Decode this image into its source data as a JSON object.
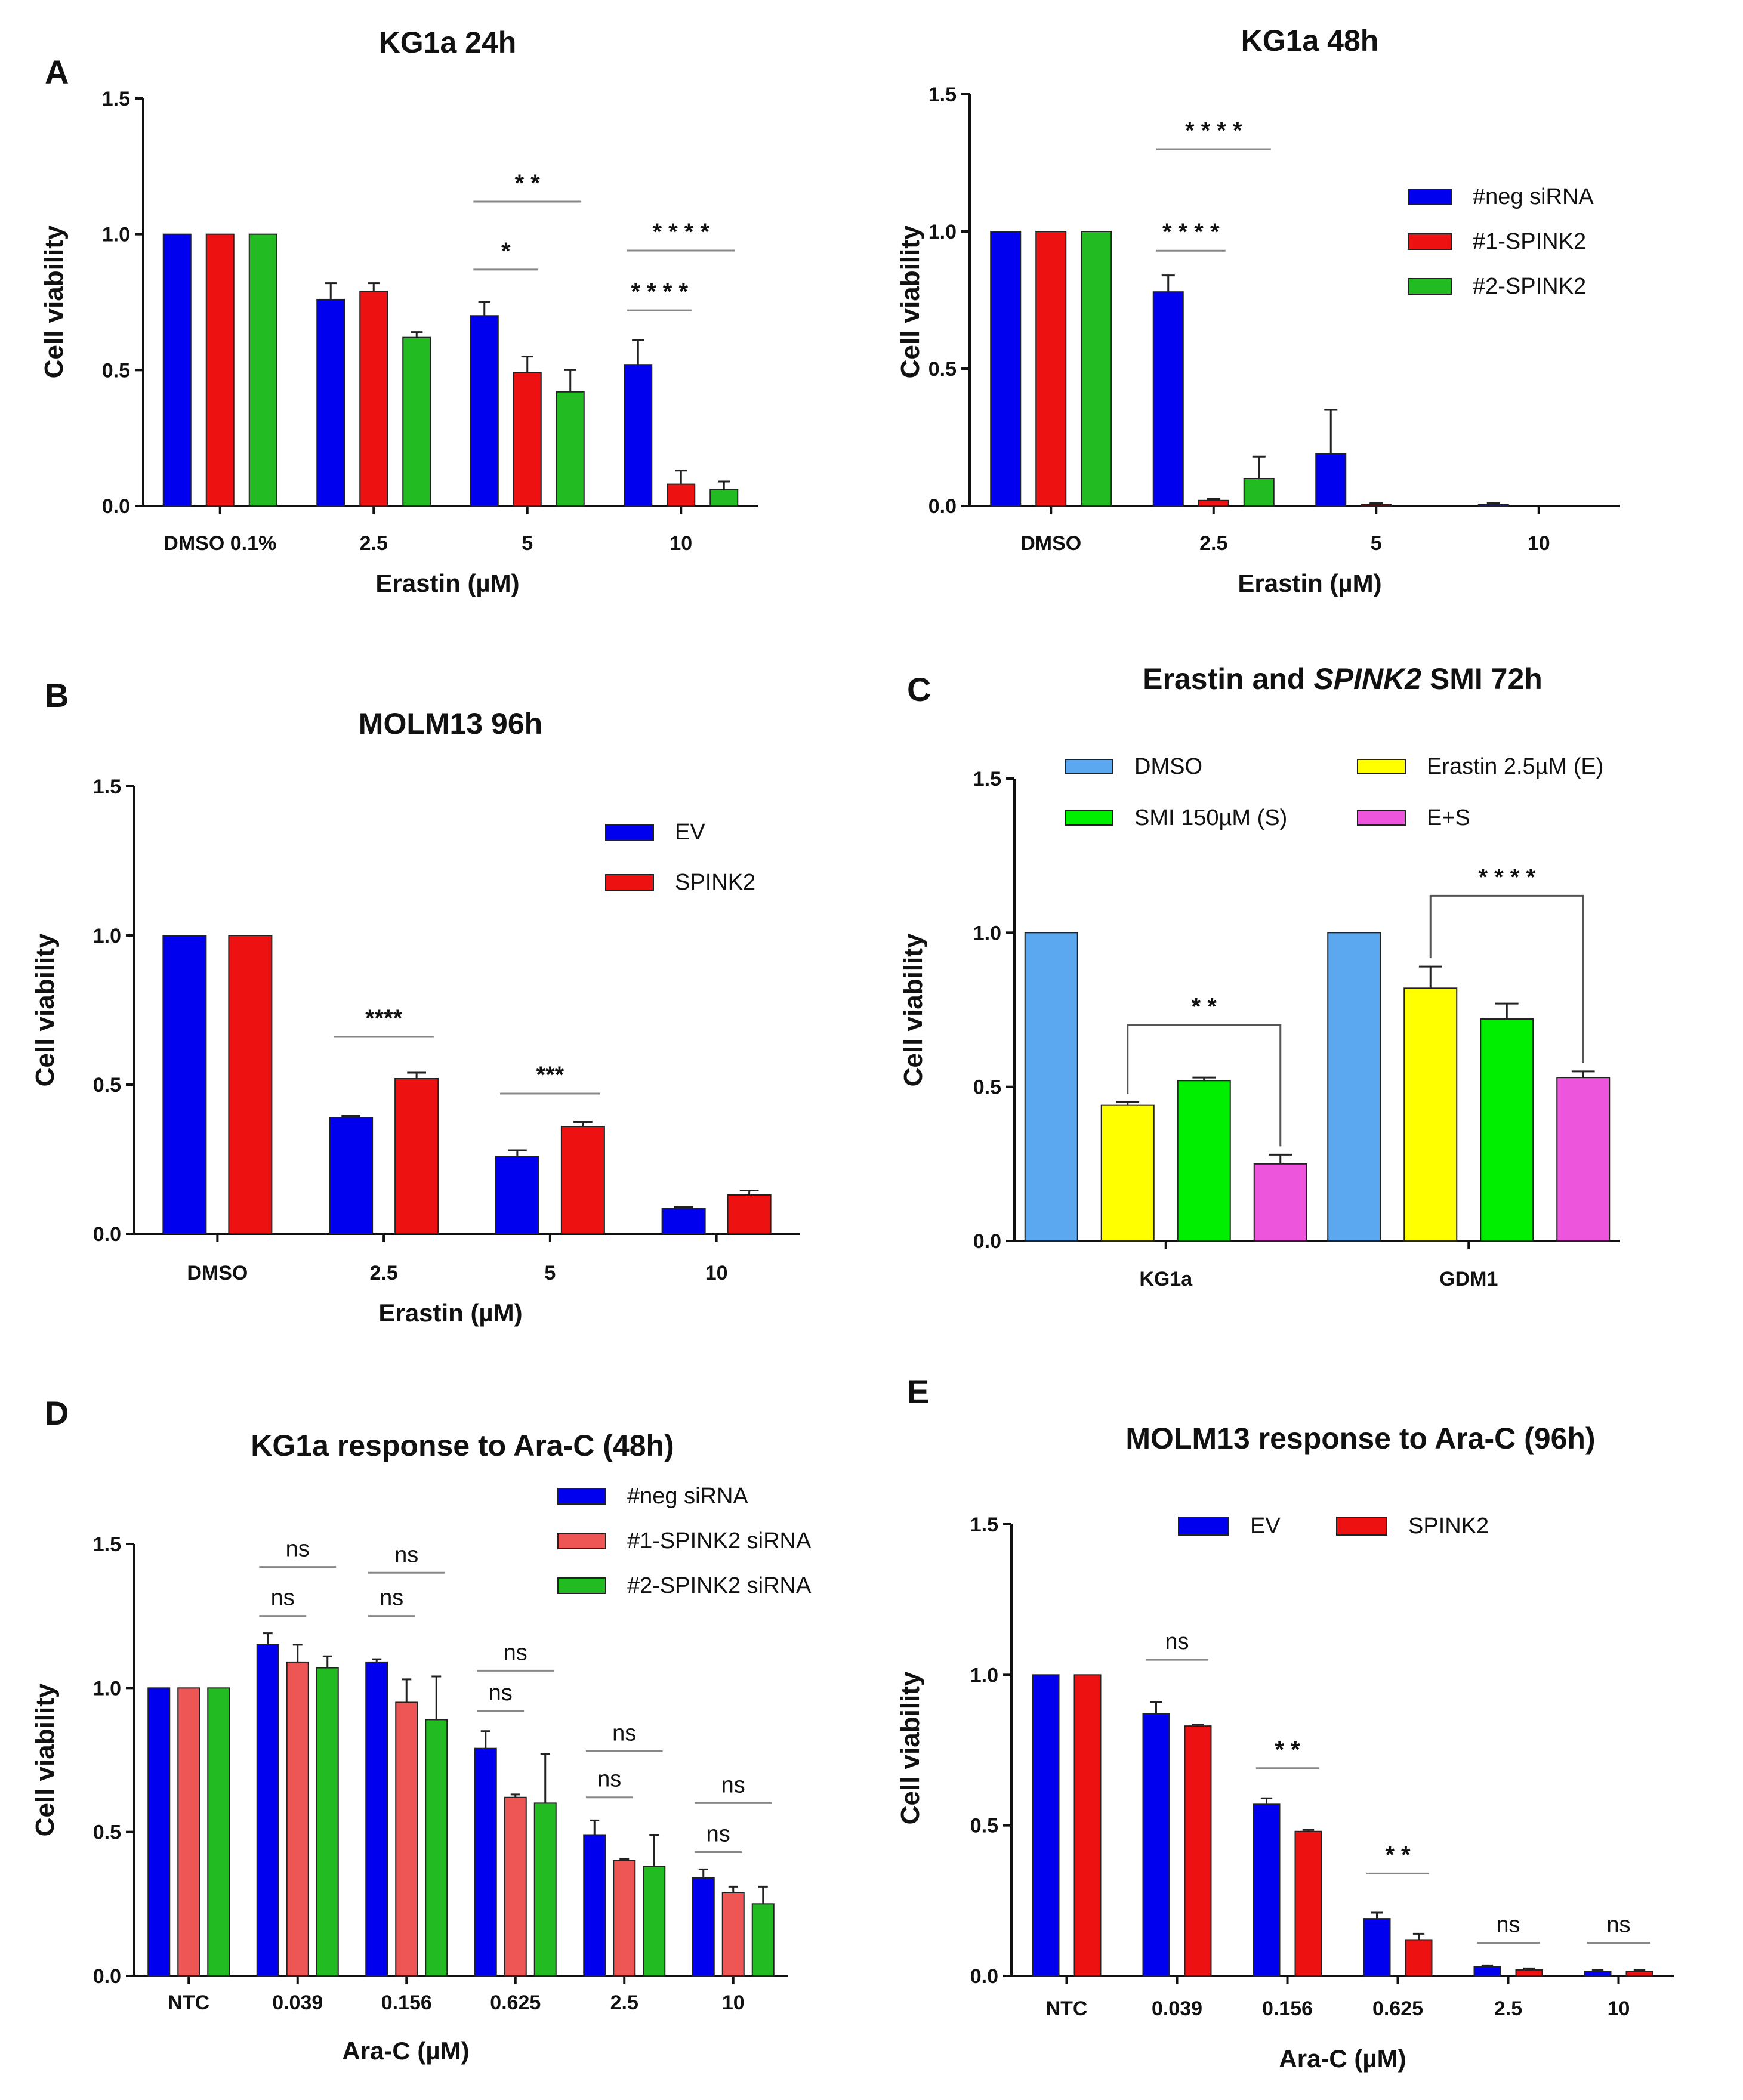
{
  "chart_data": [
    {
      "id": "A1",
      "letter": "A",
      "type": "bar",
      "title": "KG1a 24h",
      "title_italic": "",
      "title_suffix": "",
      "xlabel": "Erastin (µM)",
      "ylabel": "Cell viability",
      "ylim": [
        0,
        1.5
      ],
      "yticks": [
        "0.0",
        "0.5",
        "1.0",
        "1.5"
      ],
      "categories": [
        "DMSO 0.1%",
        "2.5",
        "5",
        "10"
      ],
      "series": [
        {
          "name": "#neg siRNA",
          "color": "#0000ee",
          "values": [
            1.0,
            0.76,
            0.7,
            0.52
          ],
          "errors": [
            0,
            0.06,
            0.05,
            0.09
          ]
        },
        {
          "name": "#1-SPINK2",
          "color": "#ee1111",
          "values": [
            1.0,
            0.79,
            0.49,
            0.08
          ],
          "errors": [
            0,
            0.03,
            0.06,
            0.05
          ]
        },
        {
          "name": "#2-SPINK2",
          "color": "#22bb22",
          "values": [
            1.0,
            0.62,
            0.42,
            0.06
          ],
          "errors": [
            0,
            0.02,
            0.08,
            0.03
          ]
        }
      ],
      "legend": null,
      "annotations": [
        {
          "text": "*",
          "group": 2,
          "from": 0,
          "to": 1,
          "y": 0.87
        },
        {
          "text": "* *",
          "group": 2,
          "from": 0,
          "to": 2,
          "y": 1.12
        },
        {
          "text": "* * * *",
          "group": 3,
          "from": 0,
          "to": 1,
          "y": 0.72
        },
        {
          "text": "* * * *",
          "group": 3,
          "from": 0,
          "to": 2,
          "y": 0.94
        }
      ]
    },
    {
      "id": "A2",
      "letter": "",
      "type": "bar",
      "title": "KG1a 48h",
      "title_italic": "",
      "title_suffix": "",
      "xlabel": "Erastin (µM)",
      "ylabel": "Cell viability",
      "ylim": [
        0,
        1.5
      ],
      "yticks": [
        "0.0",
        "0.5",
        "1.0",
        "1.5"
      ],
      "categories": [
        "DMSO",
        "2.5",
        "5",
        "10"
      ],
      "series": [
        {
          "name": "#neg siRNA",
          "color": "#0000ee",
          "values": [
            1.0,
            0.78,
            0.19,
            0.005
          ],
          "errors": [
            0,
            0.06,
            0.16,
            0.005
          ]
        },
        {
          "name": "#1-SPINK2",
          "color": "#ee1111",
          "values": [
            1.0,
            0.02,
            0.005,
            0.0
          ],
          "errors": [
            0,
            0.005,
            0.005,
            0
          ]
        },
        {
          "name": "#2-SPINK2",
          "color": "#22bb22",
          "values": [
            1.0,
            0.1,
            0.0,
            0.0
          ],
          "errors": [
            0,
            0.08,
            0,
            0
          ]
        }
      ],
      "legend": "top-right",
      "annotations": [
        {
          "text": "* * * *",
          "group": 1,
          "from": 0,
          "to": 1,
          "y": 0.93
        },
        {
          "text": "* * * *",
          "group": 1,
          "from": 0,
          "to": 2,
          "y": 1.3
        }
      ]
    },
    {
      "id": "B",
      "letter": "B",
      "type": "bar",
      "title": "MOLM13 96h",
      "title_italic": "",
      "title_suffix": "",
      "xlabel": "Erastin (µM)",
      "ylabel": "Cell viability",
      "ylim": [
        0,
        1.5
      ],
      "yticks": [
        "0.0",
        "0.5",
        "1.0",
        "1.5"
      ],
      "categories": [
        "DMSO",
        "2.5",
        "5",
        "10"
      ],
      "series": [
        {
          "name": "EV",
          "color": "#0000ee",
          "values": [
            1.0,
            0.39,
            0.26,
            0.085
          ],
          "errors": [
            0,
            0.005,
            0.02,
            0.005
          ]
        },
        {
          "name": "SPINK2",
          "color": "#ee1111",
          "values": [
            1.0,
            0.52,
            0.36,
            0.13
          ],
          "errors": [
            0,
            0.02,
            0.015,
            0.015
          ]
        }
      ],
      "legend": "top-right",
      "annotations": [
        {
          "text": "****",
          "group": 1,
          "from": 0,
          "to": 1,
          "y": 0.66
        },
        {
          "text": "***",
          "group": 2,
          "from": 0,
          "to": 1,
          "y": 0.47
        }
      ]
    },
    {
      "id": "C",
      "letter": "C",
      "type": "bar",
      "title": "Erastin and ",
      "title_italic": "SPINK2",
      "title_suffix": " SMI 72h",
      "xlabel": "",
      "ylabel": "Cell viability",
      "ylim": [
        0,
        1.5
      ],
      "yticks": [
        "0.0",
        "0.5",
        "1.0",
        "1.5"
      ],
      "categories": [
        "KG1a",
        "GDM1"
      ],
      "series": [
        {
          "name": "DMSO",
          "color": "#5ba8f0",
          "values": [
            1.0,
            1.0
          ],
          "errors": [
            0,
            0
          ]
        },
        {
          "name": "Erastin 2.5µM (E)",
          "color": "#ffff00",
          "values": [
            0.44,
            0.82
          ],
          "errors": [
            0.01,
            0.07
          ]
        },
        {
          "name": "SMI 150µM (S)",
          "color": "#00ee00",
          "values": [
            0.52,
            0.72
          ],
          "errors": [
            0.01,
            0.05
          ]
        },
        {
          "name": "E+S",
          "color": "#ee55dd",
          "values": [
            0.25,
            0.53
          ],
          "errors": [
            0.03,
            0.02
          ]
        }
      ],
      "legend": "top",
      "annotations": [
        {
          "text": "* *",
          "group": 0,
          "from": 1,
          "to": 3,
          "y": 0.7,
          "bracket": true
        },
        {
          "text": "* * * *",
          "group": 1,
          "from": 1,
          "to": 3,
          "y": 1.12,
          "bracket": true
        }
      ]
    },
    {
      "id": "D",
      "letter": "D",
      "type": "bar",
      "title": "KG1a response to Ara-C (48h)",
      "title_italic": "",
      "title_suffix": "",
      "xlabel": "Ara-C (µM)",
      "ylabel": "Cell viability",
      "ylim": [
        0,
        1.5
      ],
      "yticks": [
        "0.0",
        "0.5",
        "1.0",
        "1.5"
      ],
      "categories": [
        "NTC",
        "0.039",
        "0.156",
        "0.625",
        "2.5",
        "10"
      ],
      "series": [
        {
          "name": "#neg siRNA",
          "color": "#0000ee",
          "values": [
            1.0,
            1.15,
            1.09,
            0.79,
            0.49,
            0.34
          ],
          "errors": [
            0,
            0.04,
            0.01,
            0.06,
            0.05,
            0.03
          ]
        },
        {
          "name": "#1-SPINK2 siRNA",
          "color": "#ee5555",
          "values": [
            1.0,
            1.09,
            0.95,
            0.62,
            0.4,
            0.29
          ],
          "errors": [
            0,
            0.06,
            0.08,
            0.01,
            0.005,
            0.02
          ]
        },
        {
          "name": "#2-SPINK2 siRNA",
          "color": "#22bb22",
          "values": [
            1.0,
            1.07,
            0.89,
            0.6,
            0.38,
            0.25
          ],
          "errors": [
            0,
            0.04,
            0.15,
            0.17,
            0.11,
            0.06
          ]
        }
      ],
      "legend": "top-right",
      "annotations": [
        {
          "text": "ns",
          "group": 1,
          "from": 0,
          "to": 1,
          "y": 1.25
        },
        {
          "text": "ns",
          "group": 1,
          "from": 0,
          "to": 2,
          "y": 1.42
        },
        {
          "text": "ns",
          "group": 2,
          "from": 0,
          "to": 1,
          "y": 1.25
        },
        {
          "text": "ns",
          "group": 2,
          "from": 0,
          "to": 2,
          "y": 1.4
        },
        {
          "text": "ns",
          "group": 3,
          "from": 0,
          "to": 1,
          "y": 0.92
        },
        {
          "text": "ns",
          "group": 3,
          "from": 0,
          "to": 2,
          "y": 1.06
        },
        {
          "text": "ns",
          "group": 4,
          "from": 0,
          "to": 1,
          "y": 0.62
        },
        {
          "text": "ns",
          "group": 4,
          "from": 0,
          "to": 2,
          "y": 0.78
        },
        {
          "text": "ns",
          "group": 5,
          "from": 0,
          "to": 1,
          "y": 0.43
        },
        {
          "text": "ns",
          "group": 5,
          "from": 0,
          "to": 2,
          "y": 0.6
        }
      ]
    },
    {
      "id": "E",
      "letter": "E",
      "type": "bar",
      "title": "MOLM13 response to Ara-C (96h)",
      "title_italic": "",
      "title_suffix": "",
      "xlabel": "Ara-C (µM)",
      "ylabel": "Cell viability",
      "ylim": [
        0,
        1.5
      ],
      "yticks": [
        "0.0",
        "0.5",
        "1.0",
        "1.5"
      ],
      "categories": [
        "NTC",
        "0.039",
        "0.156",
        "0.625",
        "2.5",
        "10"
      ],
      "series": [
        {
          "name": "EV",
          "color": "#0000ee",
          "values": [
            1.0,
            0.87,
            0.57,
            0.19,
            0.03,
            0.015
          ],
          "errors": [
            0,
            0.04,
            0.02,
            0.02,
            0.005,
            0.005
          ]
        },
        {
          "name": "SPINK2",
          "color": "#ee1111",
          "values": [
            1.0,
            0.83,
            0.48,
            0.12,
            0.02,
            0.015
          ],
          "errors": [
            0,
            0.005,
            0.005,
            0.02,
            0.005,
            0.005
          ]
        }
      ],
      "legend": "top",
      "annotations": [
        {
          "text": "ns",
          "group": 1,
          "from": 0,
          "to": 1,
          "y": 1.05
        },
        {
          "text": "* *",
          "group": 2,
          "from": 0,
          "to": 1,
          "y": 0.69
        },
        {
          "text": "* *",
          "group": 3,
          "from": 0,
          "to": 1,
          "y": 0.34
        },
        {
          "text": "ns",
          "group": 4,
          "from": 0,
          "to": 1,
          "y": 0.11
        },
        {
          "text": "ns",
          "group": 5,
          "from": 0,
          "to": 1,
          "y": 0.11
        }
      ]
    }
  ]
}
